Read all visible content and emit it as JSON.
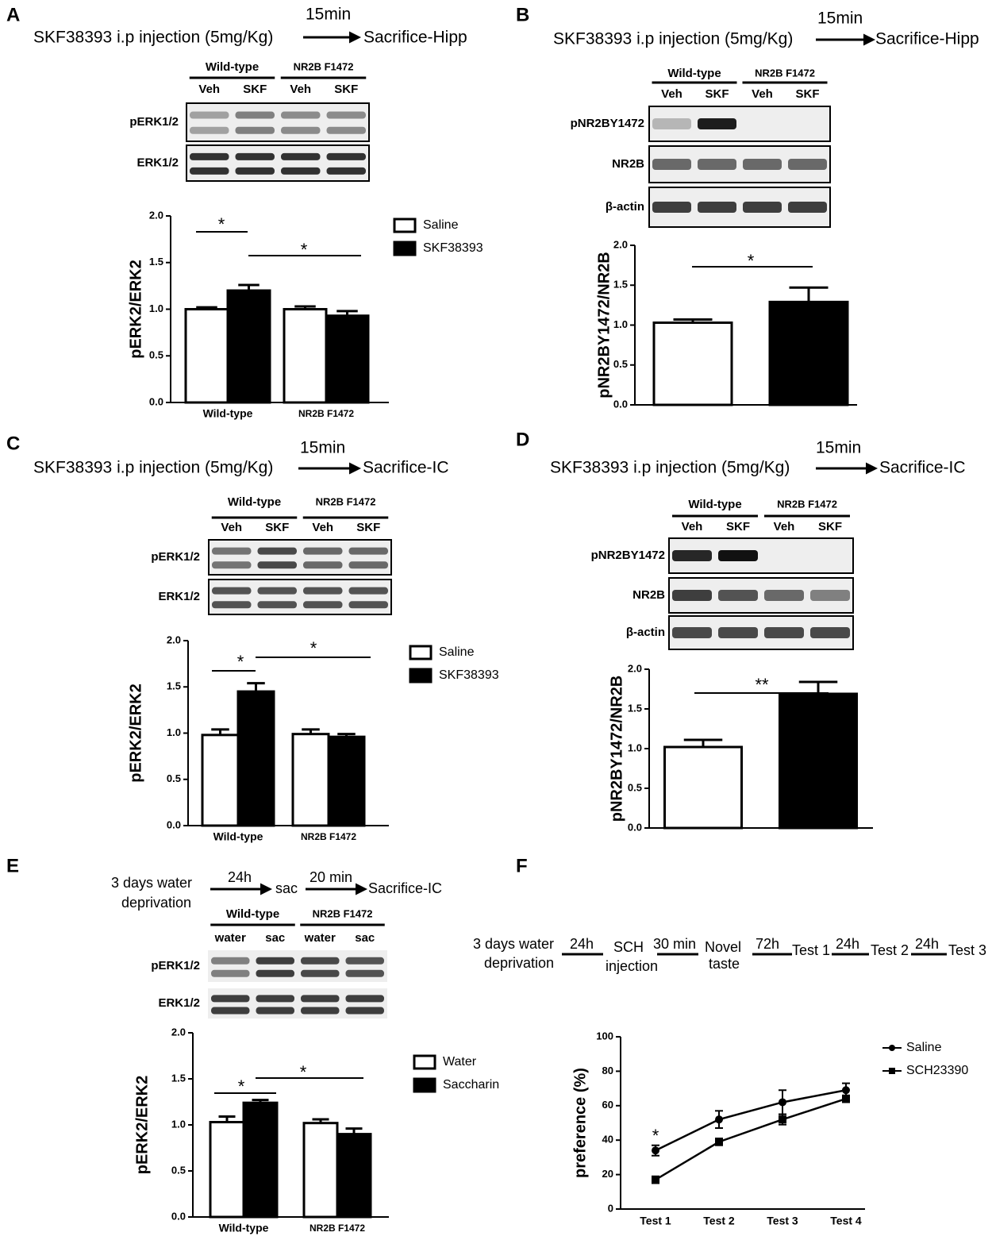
{
  "chart_data": [
    {
      "type": "bar",
      "panel": "A",
      "ylabel": "pERK2/ERK2",
      "categories": [
        "Wild-type",
        "NR2B F1472"
      ],
      "series": [
        {
          "name": "Saline",
          "color": "#ffffff",
          "values": [
            1.0,
            1.0
          ],
          "errors": [
            0.02,
            0.03
          ]
        },
        {
          "name": "SKF38393",
          "color": "#000000",
          "values": [
            1.2,
            0.93
          ],
          "errors": [
            0.06,
            0.05
          ]
        }
      ],
      "ylim": [
        0,
        2
      ],
      "yticks": [
        {
          "value": 0,
          "label": "0.0"
        },
        {
          "value": 0.5,
          "label": "0.5"
        },
        {
          "value": 1,
          "label": "1.0"
        },
        {
          "value": 1.5,
          "label": "1.5"
        },
        {
          "value": 2,
          "label": "2.0"
        }
      ],
      "annotations": [
        "*",
        "*"
      ],
      "protocol": [
        "SKF38393 i.p injection (5mg/Kg)",
        "15min",
        "Sacrifice-Hipp"
      ],
      "blot": {
        "groups": [
          "Wild-type",
          "NR2B F1472"
        ],
        "lanes": [
          "Veh",
          "SKF",
          "Veh",
          "SKF"
        ],
        "rows": [
          "pERK1/2",
          "ERK1/2"
        ]
      }
    },
    {
      "type": "bar",
      "panel": "B",
      "ylabel": "pNR2BY1472/NR2B",
      "values": [
        1.03,
        1.29
      ],
      "errors": [
        0.04,
        0.18
      ],
      "colors": [
        "#ffffff",
        "#000000"
      ],
      "ylim": [
        0,
        2
      ],
      "yticks": [
        {
          "value": 0,
          "label": "0.0"
        },
        {
          "value": 0.5,
          "label": "0.5"
        },
        {
          "value": 1,
          "label": "1.0"
        },
        {
          "value": 1.5,
          "label": "1.5"
        },
        {
          "value": 2,
          "label": "2.0"
        }
      ],
      "annotations": [
        "*"
      ],
      "protocol": [
        "SKF38393 i.p injection (5mg/Kg)",
        "15min",
        "Sacrifice-Hipp"
      ],
      "blot": {
        "groups": [
          "Wild-type",
          "NR2B F1472"
        ],
        "lanes": [
          "Veh",
          "SKF",
          "Veh",
          "SKF"
        ],
        "rows": [
          "pNR2BY1472",
          "NR2B",
          "β-actin"
        ]
      }
    },
    {
      "type": "bar",
      "panel": "C",
      "ylabel": "pERK2/ERK2",
      "categories": [
        "Wild-type",
        "NR2B F1472"
      ],
      "series": [
        {
          "name": "Saline",
          "color": "#ffffff",
          "values": [
            0.98,
            0.99
          ],
          "errors": [
            0.06,
            0.05
          ]
        },
        {
          "name": "SKF38393",
          "color": "#000000",
          "values": [
            1.45,
            0.96
          ],
          "errors": [
            0.09,
            0.03
          ]
        }
      ],
      "ylim": [
        0,
        2
      ],
      "yticks": [
        {
          "value": 0,
          "label": "0.0"
        },
        {
          "value": 0.5,
          "label": "0.5"
        },
        {
          "value": 1,
          "label": "1.0"
        },
        {
          "value": 1.5,
          "label": "1.5"
        },
        {
          "value": 2,
          "label": "2.0"
        }
      ],
      "annotations": [
        "*",
        "*"
      ],
      "protocol": [
        "SKF38393 i.p injection (5mg/Kg)",
        "15min",
        "Sacrifice-IC"
      ],
      "blot": {
        "groups": [
          "Wild-type",
          "NR2B F1472"
        ],
        "lanes": [
          "Veh",
          "SKF",
          "Veh",
          "SKF"
        ],
        "rows": [
          "pERK1/2",
          "ERK1/2"
        ]
      }
    },
    {
      "type": "bar",
      "panel": "D",
      "ylabel": "pNR2BY1472/NR2B",
      "values": [
        1.02,
        1.69
      ],
      "errors": [
        0.09,
        0.15
      ],
      "colors": [
        "#ffffff",
        "#000000"
      ],
      "ylim": [
        0,
        2
      ],
      "yticks": [
        {
          "value": 0,
          "label": "0.0"
        },
        {
          "value": 0.5,
          "label": "0.5"
        },
        {
          "value": 1,
          "label": "1.0"
        },
        {
          "value": 1.5,
          "label": "1.5"
        },
        {
          "value": 2,
          "label": "2.0"
        }
      ],
      "annotations": [
        "**"
      ],
      "protocol": [
        "SKF38393 i.p injection (5mg/Kg)",
        "15min",
        "Sacrifice-IC"
      ],
      "blot": {
        "groups": [
          "Wild-type",
          "NR2B F1472"
        ],
        "lanes": [
          "Veh",
          "SKF",
          "Veh",
          "SKF"
        ],
        "rows": [
          "pNR2BY1472",
          "NR2B",
          "β-actin"
        ]
      }
    },
    {
      "type": "bar",
      "panel": "E",
      "ylabel": "pERK2/ERK2",
      "categories": [
        "Wild-type",
        "NR2B F1472"
      ],
      "series": [
        {
          "name": "Water",
          "color": "#ffffff",
          "values": [
            1.03,
            1.02
          ],
          "errors": [
            0.06,
            0.04
          ]
        },
        {
          "name": "Saccharin",
          "color": "#000000",
          "values": [
            1.24,
            0.9
          ],
          "errors": [
            0.03,
            0.06
          ]
        }
      ],
      "ylim": [
        0,
        2
      ],
      "yticks": [
        {
          "value": 0,
          "label": "0.0"
        },
        {
          "value": 0.5,
          "label": "0.5"
        },
        {
          "value": 1,
          "label": "1.0"
        },
        {
          "value": 1.5,
          "label": "1.5"
        },
        {
          "value": 2,
          "label": "2.0"
        }
      ],
      "annotations": [
        "*",
        "*"
      ],
      "protocol": [
        "3 days water",
        "deprivation",
        "24h",
        "sac",
        "20 min",
        "Sacrifice-IC"
      ],
      "blot": {
        "groups": [
          "Wild-type",
          "NR2B F1472"
        ],
        "lanes": [
          "water",
          "sac",
          "water",
          "sac"
        ],
        "rows": [
          "pERK1/2",
          "ERK1/2"
        ]
      }
    },
    {
      "type": "line",
      "panel": "F",
      "ylabel": "preference (%)",
      "categories": [
        "Test 1",
        "Test 2",
        "Test 3",
        "Test 4"
      ],
      "series": [
        {
          "name": "Saline",
          "color": "#000000",
          "values": [
            34,
            52,
            62,
            69
          ],
          "errors": [
            3,
            5,
            7,
            4
          ]
        },
        {
          "name": "SCH23390",
          "color": "#000000",
          "values": [
            17,
            39,
            52,
            64
          ],
          "errors": [
            2,
            2,
            3,
            2
          ]
        }
      ],
      "ylim": [
        0,
        100
      ],
      "yticks": [
        0,
        20,
        40,
        60,
        80,
        100
      ],
      "annotations": [
        "*"
      ],
      "protocol": [
        "3 days water",
        "deprivation",
        "24h",
        "SCH",
        "injection",
        "30 min",
        "Novel",
        "taste",
        "72h",
        "Test 1",
        "24h",
        "Test 2",
        "24h",
        "Test 3"
      ]
    }
  ]
}
